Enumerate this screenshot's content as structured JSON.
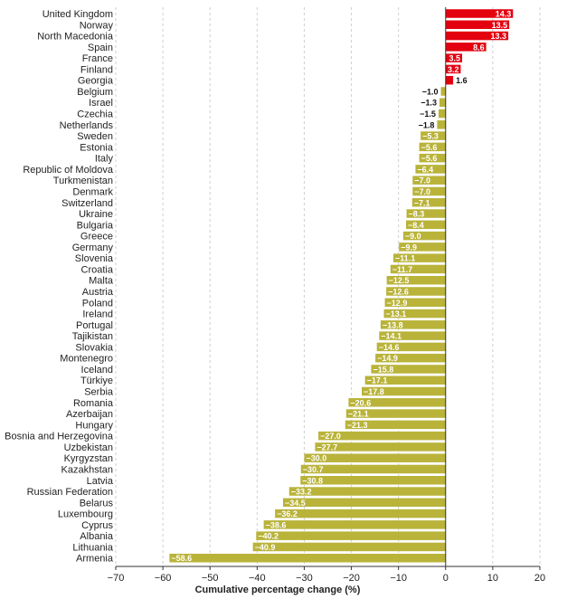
{
  "chart_data": {
    "type": "bar",
    "orientation": "horizontal",
    "xlabel": "Cumulative percentage change (%)",
    "ylabel": "",
    "xlim": [
      -70,
      20
    ],
    "xticks": [
      -70,
      -60,
      -50,
      -40,
      -30,
      -20,
      -10,
      0,
      10,
      20
    ],
    "xtick_labels": [
      "−70",
      "−60",
      "−50",
      "−40",
      "−30",
      "−20",
      "−10",
      "0",
      "10",
      "20"
    ],
    "grid": "vertical dashed",
    "colors": {
      "positive": "#e3000f",
      "negative": "#b9b33a",
      "zero_line": "#333333"
    },
    "categories": [
      "United Kingdom",
      "Norway",
      "North Macedonia",
      "Spain",
      "France",
      "Finland",
      "Georgia",
      "Belgium",
      "Israel",
      "Czechia",
      "Netherlands",
      "Sweden",
      "Estonia",
      "Italy",
      "Republic of Moldova",
      "Turkmenistan",
      "Denmark",
      "Switzerland",
      "Ukraine",
      "Bulgaria",
      "Greece",
      "Germany",
      "Slovenia",
      "Croatia",
      "Malta",
      "Austria",
      "Poland",
      "Ireland",
      "Portugal",
      "Tajikistan",
      "Slovakia",
      "Montenegro",
      "Iceland",
      "Türkiye",
      "Serbia",
      "Romania",
      "Azerbaijan",
      "Hungary",
      "Bosnia and Herzegovina",
      "Uzbekistan",
      "Kyrgyzstan",
      "Kazakhstan",
      "Latvia",
      "Russian Federation",
      "Belarus",
      "Luxembourg",
      "Cyprus",
      "Albania",
      "Lithuania",
      "Armenia"
    ],
    "values": [
      14.3,
      13.5,
      13.3,
      8.6,
      3.5,
      3.2,
      1.6,
      -1.0,
      -1.3,
      -1.5,
      -1.8,
      -5.3,
      -5.6,
      -5.6,
      -6.4,
      -7.0,
      -7.0,
      -7.1,
      -8.3,
      -8.4,
      -9.0,
      -9.9,
      -11.1,
      -11.7,
      -12.5,
      -12.6,
      -12.9,
      -13.1,
      -13.8,
      -14.1,
      -14.6,
      -14.9,
      -15.8,
      -17.1,
      -17.8,
      -20.6,
      -21.1,
      -21.3,
      -27.0,
      -27.7,
      -30.0,
      -30.7,
      -30.8,
      -33.2,
      -34.5,
      -36.2,
      -38.6,
      -40.2,
      -40.9,
      -58.6
    ],
    "value_labels": [
      "14.3",
      "13.5",
      "13.3",
      "8.6",
      "3.5",
      "3.2",
      "1.6",
      "−1.0",
      "−1.3",
      "−1.5",
      "−1.8",
      "−5.3",
      "−5.6",
      "−5.6",
      "−6.4",
      "−7.0",
      "−7.0",
      "−7.1",
      "−8.3",
      "−8.4",
      "−9.0",
      "−9.9",
      "−11.1",
      "−11.7",
      "−12.5",
      "−12.6",
      "−12.9",
      "−13.1",
      "−13.8",
      "−14.1",
      "−14.6",
      "−14.9",
      "−15.8",
      "−17.1",
      "−17.8",
      "−20.6",
      "−21.1",
      "−21.3",
      "−27.0",
      "−27.7",
      "−30.0",
      "−30.7",
      "−30.8",
      "−33.2",
      "−34.5",
      "−36.2",
      "−38.6",
      "−40.2",
      "−40.9",
      "−58.6"
    ]
  }
}
